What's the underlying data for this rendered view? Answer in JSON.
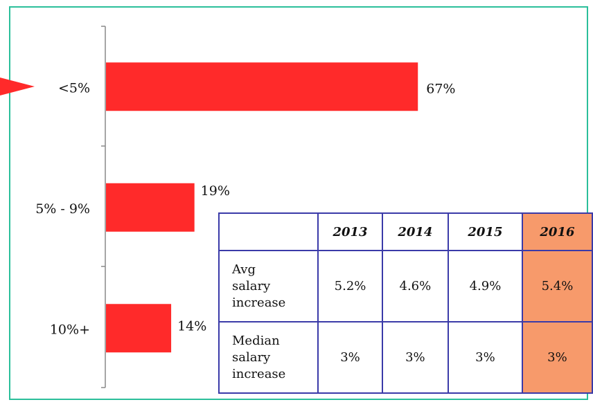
{
  "chart_data": {
    "type": "bar",
    "orientation": "horizontal",
    "categories": [
      "<5%",
      "5% - 9%",
      "10%+"
    ],
    "values": [
      67,
      19,
      14
    ],
    "value_labels": [
      "67%",
      "19%",
      "14%"
    ],
    "color": "#ff2a2a"
  },
  "table": {
    "columns": [
      "2013",
      "2014",
      "2015",
      "2016"
    ],
    "rows": [
      {
        "label": "Avg salary increase",
        "cells": [
          "5.2%",
          "4.6%",
          "4.9%",
          "5.4%"
        ]
      },
      {
        "label": "Median salary increase",
        "cells": [
          "3%",
          "3%",
          "3%",
          "3%"
        ]
      }
    ]
  }
}
